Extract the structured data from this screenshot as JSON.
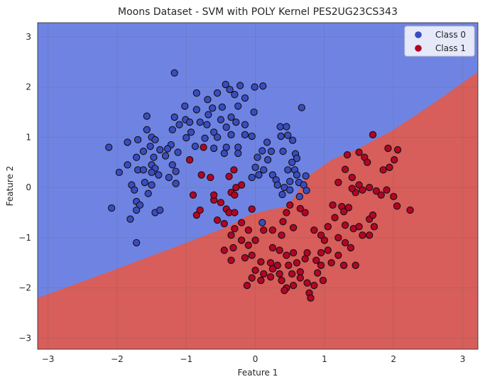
{
  "chart_data": {
    "type": "scatter",
    "title": "Moons Dataset - SVM with POLY Kernel PES2UG23CS343",
    "xlabel": "Feature 1",
    "ylabel": "Feature 2",
    "xlim": [
      -3.15,
      3.22
    ],
    "ylim": [
      -3.22,
      3.28
    ],
    "xticks": [
      -3,
      -2,
      -1,
      0,
      1,
      2,
      3
    ],
    "yticks": [
      -3,
      -2,
      -1,
      0,
      1,
      2,
      3
    ],
    "grid": true,
    "legend_position": "top-right",
    "decision_boundary": [
      [
        -3.15,
        -2.2
      ],
      [
        -2,
        -1.62
      ],
      [
        -1,
        -1.1
      ],
      [
        -0.4,
        -0.78
      ],
      [
        -0.1,
        -0.55
      ],
      [
        0.25,
        -0.43
      ],
      [
        0.45,
        -0.38
      ],
      [
        0.6,
        -0.12
      ],
      [
        0.72,
        0.18
      ],
      [
        1.1,
        0.55
      ],
      [
        1.5,
        0.78
      ],
      [
        2,
        1.15
      ],
      [
        2.5,
        1.6
      ],
      [
        3.22,
        2.3
      ]
    ],
    "regions": {
      "upper_color": "#6f84e2",
      "lower_color": "#d75e5a"
    },
    "series": [
      {
        "name": "Class 0",
        "color": "#3b4cc0",
        "points": [
          [
            -1.17,
            2.28
          ],
          [
            -0.43,
            2.05
          ],
          [
            -0.22,
            2.03
          ],
          [
            -0.01,
            2.0
          ],
          [
            0.11,
            2.02
          ],
          [
            -0.85,
            1.88
          ],
          [
            -0.55,
            1.88
          ],
          [
            -0.37,
            1.95
          ],
          [
            -0.3,
            1.85
          ],
          [
            -0.69,
            1.75
          ],
          [
            -0.15,
            1.78
          ],
          [
            0.67,
            1.59
          ],
          [
            -1.02,
            1.62
          ],
          [
            -0.62,
            1.58
          ],
          [
            -0.48,
            1.6
          ],
          [
            -0.25,
            1.62
          ],
          [
            -0.85,
            1.55
          ],
          [
            -0.02,
            1.5
          ],
          [
            -1.57,
            1.42
          ],
          [
            -1.17,
            1.4
          ],
          [
            -0.68,
            1.45
          ],
          [
            -0.35,
            1.4
          ],
          [
            -1.01,
            1.35
          ],
          [
            -0.95,
            1.3
          ],
          [
            -0.8,
            1.3
          ],
          [
            -0.5,
            1.35
          ],
          [
            -0.28,
            1.3
          ],
          [
            -1.1,
            1.25
          ],
          [
            -0.7,
            1.25
          ],
          [
            -0.42,
            1.2
          ],
          [
            -0.15,
            1.25
          ],
          [
            -1.57,
            1.15
          ],
          [
            -1.2,
            1.15
          ],
          [
            -0.93,
            1.1
          ],
          [
            -0.6,
            1.1
          ],
          [
            -0.35,
            1.05
          ],
          [
            -0.15,
            1.05
          ],
          [
            -1.5,
            1.0
          ],
          [
            -1.0,
            0.99
          ],
          [
            -0.73,
            0.98
          ],
          [
            -0.55,
            1.0
          ],
          [
            -0.05,
            1.02
          ],
          [
            0.36,
            1.21
          ],
          [
            0.45,
            1.21
          ],
          [
            -1.45,
            0.95
          ],
          [
            -1.7,
            0.95
          ],
          [
            -1.85,
            0.9
          ],
          [
            -1.52,
            0.82
          ],
          [
            -1.38,
            0.75
          ],
          [
            -0.87,
            0.82
          ],
          [
            -0.6,
            0.78
          ],
          [
            -0.42,
            0.8
          ],
          [
            -0.25,
            0.8
          ],
          [
            0.17,
            0.9
          ],
          [
            0.37,
            1.02
          ],
          [
            0.47,
            1.04
          ],
          [
            0.54,
            0.94
          ],
          [
            -2.12,
            0.8
          ],
          [
            -1.22,
            0.85
          ],
          [
            -1.27,
            0.77
          ],
          [
            -1.3,
            0.63
          ],
          [
            -1.62,
            0.72
          ],
          [
            -1.72,
            0.6
          ],
          [
            -1.47,
            0.6
          ],
          [
            -1.12,
            0.7
          ],
          [
            -0.95,
            0.55
          ],
          [
            -0.45,
            0.68
          ],
          [
            -0.25,
            0.68
          ],
          [
            0.1,
            0.73
          ],
          [
            0.23,
            0.72
          ],
          [
            0.4,
            0.72
          ],
          [
            0.58,
            0.67
          ],
          [
            0.6,
            0.58
          ],
          [
            -1.85,
            0.45
          ],
          [
            -1.5,
            0.45
          ],
          [
            -1.2,
            0.45
          ],
          [
            0.03,
            0.6
          ],
          [
            0.18,
            0.55
          ],
          [
            0.53,
            0.5
          ],
          [
            0.47,
            0.35
          ],
          [
            -1.97,
            0.3
          ],
          [
            -1.7,
            0.35
          ],
          [
            -1.62,
            0.35
          ],
          [
            -1.45,
            0.38
          ],
          [
            -1.5,
            0.3
          ],
          [
            -1.4,
            0.25
          ],
          [
            -1.15,
            0.32
          ],
          [
            -1.25,
            0.2
          ],
          [
            0.0,
            0.4
          ],
          [
            0.12,
            0.35
          ],
          [
            0.25,
            0.25
          ],
          [
            0.57,
            0.35
          ],
          [
            0.6,
            0.25
          ],
          [
            -0.05,
            0.2
          ],
          [
            0.05,
            0.25
          ],
          [
            0.3,
            0.15
          ],
          [
            0.5,
            0.12
          ],
          [
            0.63,
            0.1
          ],
          [
            -1.79,
            0.05
          ],
          [
            -1.6,
            0.1
          ],
          [
            -1.75,
            -0.05
          ],
          [
            -1.5,
            0.05
          ],
          [
            -1.55,
            -0.12
          ],
          [
            -1.15,
            0.08
          ],
          [
            0.32,
            0.05
          ],
          [
            0.42,
            0.0
          ],
          [
            0.5,
            -0.05
          ],
          [
            0.73,
            0.23
          ],
          [
            0.7,
            0.05
          ],
          [
            -2.08,
            -0.41
          ],
          [
            -1.72,
            -0.28
          ],
          [
            -1.67,
            -0.35
          ],
          [
            -1.72,
            -0.45
          ],
          [
            -1.45,
            -0.5
          ],
          [
            -1.38,
            -0.45
          ],
          [
            -1.81,
            -0.63
          ],
          [
            -1.72,
            -1.1
          ],
          [
            0.39,
            -0.14
          ],
          [
            0.64,
            -0.18
          ],
          [
            0.1,
            -0.7
          ],
          [
            0.74,
            -0.06
          ]
        ]
      },
      {
        "name": "Class 1",
        "color": "#b40426",
        "points": [
          [
            1.7,
            1.05
          ],
          [
            1.92,
            0.78
          ],
          [
            2.06,
            0.75
          ],
          [
            1.5,
            0.7
          ],
          [
            1.33,
            0.65
          ],
          [
            1.58,
            0.6
          ],
          [
            -0.95,
            0.55
          ],
          [
            -0.75,
            0.8
          ],
          [
            -0.2,
            0.05
          ],
          [
            -0.28,
            0.0
          ],
          [
            -0.35,
            -0.1
          ],
          [
            -0.6,
            -0.25
          ],
          [
            -0.3,
            -0.15
          ],
          [
            1.62,
            0.5
          ],
          [
            1.85,
            0.35
          ],
          [
            1.94,
            0.4
          ],
          [
            2.01,
            0.55
          ],
          [
            1.3,
            0.36
          ],
          [
            1.4,
            0.2
          ],
          [
            -0.78,
            0.25
          ],
          [
            -0.38,
            0.22
          ],
          [
            -0.31,
            0.35
          ],
          [
            -0.65,
            0.2
          ],
          [
            1.2,
            0.1
          ],
          [
            1.5,
            0.05
          ],
          [
            1.65,
            0.0
          ],
          [
            1.75,
            -0.07
          ],
          [
            1.9,
            -0.05
          ],
          [
            2.0,
            -0.18
          ],
          [
            2.05,
            -0.37
          ],
          [
            2.24,
            -0.45
          ],
          [
            1.45,
            -0.1
          ],
          [
            1.55,
            -0.05
          ],
          [
            1.82,
            -0.15
          ],
          [
            1.4,
            -0.02
          ],
          [
            1.12,
            -0.35
          ],
          [
            1.25,
            -0.38
          ],
          [
            1.28,
            -0.48
          ],
          [
            1.35,
            -0.4
          ],
          [
            -0.9,
            -0.15
          ],
          [
            -0.6,
            -0.15
          ],
          [
            -0.85,
            -0.55
          ],
          [
            -0.8,
            -0.45
          ],
          [
            -0.5,
            -0.3
          ],
          [
            -0.42,
            -0.43
          ],
          [
            -0.38,
            -0.5
          ],
          [
            -0.3,
            -0.5
          ],
          [
            -0.05,
            -0.43
          ],
          [
            0.45,
            -0.5
          ],
          [
            0.5,
            -0.35
          ],
          [
            0.65,
            -0.42
          ],
          [
            0.72,
            -0.5
          ],
          [
            0.55,
            -0.8
          ],
          [
            0.4,
            -0.68
          ],
          [
            1.15,
            -0.6
          ],
          [
            1.3,
            -0.75
          ],
          [
            1.05,
            -0.78
          ],
          [
            1.42,
            -0.82
          ],
          [
            1.5,
            -0.78
          ],
          [
            1.65,
            -0.63
          ],
          [
            1.7,
            -0.55
          ],
          [
            1.72,
            -0.78
          ],
          [
            1.65,
            -0.95
          ],
          [
            1.55,
            -0.95
          ],
          [
            -0.55,
            -0.65
          ],
          [
            -0.45,
            -0.72
          ],
          [
            -0.2,
            -0.7
          ],
          [
            -0.3,
            -0.82
          ],
          [
            -0.1,
            -0.85
          ],
          [
            0.12,
            -0.85
          ],
          [
            0.25,
            -0.85
          ],
          [
            0.38,
            -0.95
          ],
          [
            0.85,
            -0.85
          ],
          [
            0.95,
            -0.95
          ],
          [
            1.0,
            -1.05
          ],
          [
            1.2,
            -1.0
          ],
          [
            1.3,
            -1.1
          ],
          [
            1.05,
            -1.25
          ],
          [
            -0.35,
            -0.95
          ],
          [
            -0.2,
            -1.05
          ],
          [
            -0.1,
            -1.15
          ],
          [
            0.0,
            -1.05
          ],
          [
            -0.32,
            -1.2
          ],
          [
            -0.45,
            -1.25
          ],
          [
            0.25,
            -1.2
          ],
          [
            0.35,
            -1.25
          ],
          [
            0.45,
            -1.35
          ],
          [
            0.55,
            -1.3
          ],
          [
            0.75,
            -1.3
          ],
          [
            0.95,
            -1.3
          ],
          [
            1.2,
            -1.35
          ],
          [
            1.38,
            -1.2
          ],
          [
            -0.35,
            -1.45
          ],
          [
            -0.15,
            -1.4
          ],
          [
            -0.05,
            -1.35
          ],
          [
            0.08,
            -1.48
          ],
          [
            0.22,
            -1.5
          ],
          [
            0.32,
            -1.55
          ],
          [
            0.48,
            -1.55
          ],
          [
            0.6,
            -1.5
          ],
          [
            0.72,
            -1.42
          ],
          [
            0.88,
            -1.45
          ],
          [
            0.95,
            -1.55
          ],
          [
            1.1,
            -1.5
          ],
          [
            0.0,
            -1.65
          ],
          [
            0.12,
            -1.72
          ],
          [
            0.25,
            -1.62
          ],
          [
            0.35,
            -1.72
          ],
          [
            0.53,
            -1.72
          ],
          [
            0.65,
            -1.68
          ],
          [
            0.9,
            -1.7
          ],
          [
            1.28,
            -1.55
          ],
          [
            1.45,
            -1.55
          ],
          [
            -0.05,
            -1.8
          ],
          [
            0.08,
            -1.85
          ],
          [
            0.22,
            -1.78
          ],
          [
            0.38,
            -1.85
          ],
          [
            0.55,
            -1.95
          ],
          [
            0.65,
            -1.8
          ],
          [
            0.75,
            -1.9
          ],
          [
            0.85,
            -1.95
          ],
          [
            0.98,
            -1.85
          ],
          [
            0.45,
            -2.0
          ],
          [
            0.42,
            -2.05
          ],
          [
            -0.12,
            -1.95
          ],
          [
            0.78,
            -2.1
          ],
          [
            0.8,
            -2.2
          ]
        ]
      }
    ]
  }
}
